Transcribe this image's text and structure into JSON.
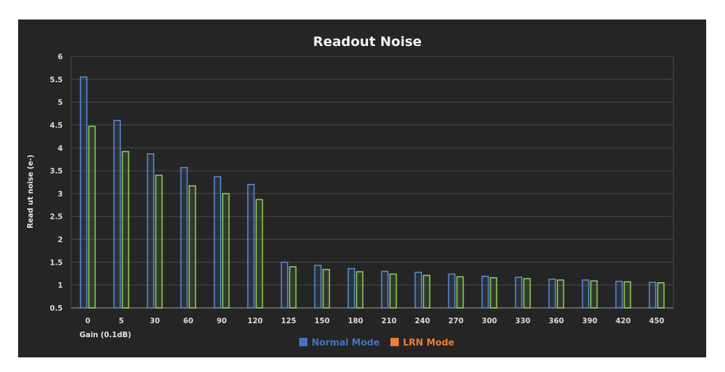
{
  "chart_data": {
    "type": "bar",
    "title": "Readout Noise",
    "xlabel": "Gain (0.1dB)",
    "ylabel": "Read ut noise (e-)",
    "ylim": [
      0.5,
      6
    ],
    "yticks": [
      "0.5",
      "1",
      "1.5",
      "2",
      "2.5",
      "3",
      "3.5",
      "4",
      "4.5",
      "5",
      "5.5",
      "6"
    ],
    "categories": [
      "0",
      "5",
      "30",
      "60",
      "90",
      "120",
      "125",
      "150",
      "180",
      "210",
      "240",
      "270",
      "300",
      "330",
      "360",
      "390",
      "420",
      "450"
    ],
    "grid": true,
    "legend_position": "bottom",
    "series": [
      {
        "name": "Normal Mode",
        "legend_color": "#4472c4",
        "bar_color": "#5b8bd6",
        "values": [
          5.55,
          4.6,
          3.87,
          3.57,
          3.37,
          3.2,
          1.5,
          1.43,
          1.36,
          1.3,
          1.28,
          1.24,
          1.19,
          1.17,
          1.13,
          1.11,
          1.08,
          1.06
        ]
      },
      {
        "name": "LRN Mode",
        "legend_color": "#ed7d31",
        "bar_color": "#8fcf5a",
        "values": [
          4.47,
          3.92,
          3.4,
          3.17,
          3.0,
          2.87,
          1.4,
          1.34,
          1.29,
          1.24,
          1.21,
          1.18,
          1.16,
          1.14,
          1.11,
          1.09,
          1.07,
          1.05
        ]
      }
    ]
  }
}
